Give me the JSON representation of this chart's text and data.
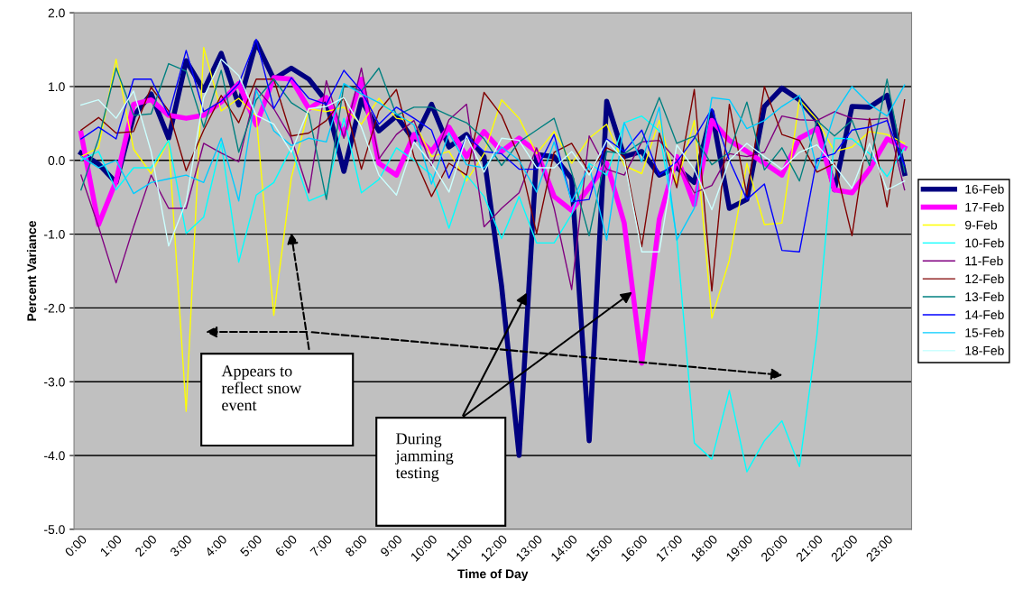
{
  "chart_data": {
    "type": "line",
    "xlabel": "Time of Day",
    "ylabel": "Percent Variance",
    "categories": [
      "0:00",
      null,
      "1:00",
      null,
      "2:00",
      null,
      "3:00",
      null,
      "4:00",
      null,
      "5:00",
      null,
      "6:00",
      null,
      "7:00",
      null,
      "8:00",
      null,
      "9:00",
      null,
      "10:00",
      null,
      "11:00",
      null,
      "12:00",
      null,
      "13:00",
      null,
      "14:00",
      null,
      "15:00",
      null,
      "16:00",
      null,
      "17:00",
      null,
      "18:00",
      null,
      "19:00",
      null,
      "20:00",
      null,
      "21:00",
      null,
      "22:00",
      null,
      "23:00",
      null
    ],
    "ylim": [
      -5,
      2
    ],
    "yticks": [
      {
        "value": -5,
        "label": "-5.0"
      },
      {
        "value": -4,
        "label": "-4.0"
      },
      {
        "value": -3,
        "label": "-3.0"
      },
      {
        "value": -2,
        "label": "-2.0"
      },
      {
        "value": -1,
        "label": "-1.0"
      },
      {
        "value": 0,
        "label": "0.0"
      },
      {
        "value": 1,
        "label": "1.0"
      },
      {
        "value": 2,
        "label": "2.0"
      }
    ],
    "grid": "y",
    "legend": "right",
    "marker": "none",
    "line_style": "solid",
    "series": [
      {
        "name": "16-Feb",
        "color": "#000080",
        "values": [
          0.1,
          -0.05,
          -0.3,
          0.6,
          0.9,
          0.3,
          1.35,
          0.95,
          1.45,
          0.75,
          1.6,
          1.1,
          1.25,
          1.1,
          0.8,
          -0.15,
          0.82,
          0.4,
          0.6,
          0.27,
          0.76,
          0.18,
          0.35,
          0.05,
          -1.7,
          -4.0,
          0.08,
          0.05,
          -0.25,
          -3.8,
          0.8,
          0.05,
          0.12,
          -0.2,
          -0.1,
          -0.3,
          0.66,
          -0.65,
          -0.53,
          0.73,
          0.98,
          0.82,
          0.54,
          -0.4,
          0.73,
          0.72,
          0.88,
          -0.18
        ]
      },
      {
        "name": "17-Feb",
        "color": "#ff00ff",
        "values": [
          0.37,
          -0.87,
          -0.28,
          0.76,
          0.82,
          0.61,
          0.57,
          0.61,
          0.79,
          1.04,
          0.48,
          1.12,
          1.1,
          0.7,
          0.85,
          0.35,
          1.1,
          -0.04,
          -0.2,
          0.35,
          0.12,
          0.45,
          0.05,
          0.39,
          0.12,
          0.3,
          0.12,
          -0.49,
          -0.68,
          -0.37,
          -0.04,
          -0.85,
          -2.75,
          -0.8,
          0.05,
          -0.6,
          0.54,
          0.27,
          0.12,
          -0.04,
          -0.2,
          0.3,
          0.43,
          -0.4,
          -0.44,
          -0.12,
          0.29,
          0.17
        ]
      },
      {
        "name": "9-Feb",
        "color": "#ffff00",
        "values": [
          0.05,
          0.17,
          1.37,
          0.15,
          -0.18,
          0.27,
          -3.4,
          1.53,
          0.67,
          0.84,
          0.6,
          -2.1,
          -0.24,
          0.7,
          0.66,
          0.72,
          0.49,
          0.84,
          0.57,
          0.53,
          0.05,
          0.12,
          -0.28,
          0.09,
          0.82,
          0.57,
          0.09,
          0.39,
          -0.04,
          0.3,
          0.49,
          -0.07,
          -0.18,
          0.54,
          -0.32,
          0.54,
          -2.14,
          -1.35,
          -0.04,
          -0.87,
          -0.85,
          0.82,
          0.55,
          0.12,
          0.18,
          0.39,
          0.35,
          0.23
        ]
      },
      {
        "name": "10-Feb",
        "color": "#00ffff",
        "values": [
          0.0,
          0.12,
          -0.4,
          -0.1,
          -0.1,
          0.27,
          -0.99,
          -0.77,
          0.23,
          -1.38,
          -0.47,
          -0.3,
          0.17,
          -0.55,
          -0.45,
          0.57,
          -0.44,
          -0.26,
          0.17,
          0.0,
          -0.2,
          -0.92,
          -0.2,
          -0.49,
          -1.06,
          -0.49,
          -1.12,
          -1.12,
          -0.73,
          -0.04,
          -0.2,
          0.51,
          0.6,
          0.4,
          -1.05,
          -3.83,
          -4.05,
          -3.12,
          -4.22,
          -3.8,
          -3.53,
          -4.15,
          -2.36,
          0.3,
          0.29,
          0.09,
          -0.22,
          0.17
        ]
      },
      {
        "name": "11-Feb",
        "color": "#800080",
        "values": [
          -0.2,
          -0.9,
          -1.66,
          -0.9,
          -0.2,
          -0.65,
          -0.65,
          0.23,
          0.1,
          -0.02,
          0.98,
          0.7,
          0.3,
          -0.44,
          1.08,
          0.3,
          1.25,
          0.02,
          0.35,
          0.54,
          -0.07,
          0.55,
          0.76,
          -0.9,
          -0.65,
          -0.44,
          0.17,
          -0.65,
          -1.75,
          0.33,
          -0.12,
          -0.2,
          0.25,
          0.27,
          0.0,
          -0.44,
          -0.34,
          0.09,
          0.05,
          0.11,
          0.6,
          0.55,
          0.54,
          0.66,
          0.57,
          0.55,
          0.57,
          -0.4
        ]
      },
      {
        "name": "12-Feb",
        "color": "#800000",
        "values": [
          0.41,
          0.58,
          0.37,
          0.39,
          0.99,
          0.67,
          -0.14,
          0.41,
          0.88,
          0.51,
          1.1,
          1.1,
          0.33,
          0.37,
          0.54,
          0.85,
          -0.12,
          0.67,
          0.96,
          0.05,
          -0.49,
          -0.04,
          -0.2,
          0.92,
          0.61,
          0.05,
          -0.99,
          0.11,
          0.23,
          -0.16,
          0.17,
          0.05,
          -1.17,
          0.37,
          -0.37,
          0.96,
          -1.77,
          0.76,
          -0.47,
          1.0,
          0.35,
          0.27,
          -0.16,
          -0.04,
          -1.02,
          0.57,
          -0.63,
          0.82
        ]
      },
      {
        "name": "13-Feb",
        "color": "#008080",
        "values": [
          -0.4,
          0.29,
          1.25,
          0.61,
          0.63,
          1.31,
          1.21,
          0.45,
          1.22,
          0.11,
          0.82,
          1.1,
          0.78,
          0.63,
          -0.53,
          1.02,
          0.94,
          1.25,
          0.61,
          0.72,
          0.72,
          0.61,
          0.51,
          0.29,
          -0.07,
          0.25,
          0.41,
          0.57,
          -0.16,
          -1.02,
          0.12,
          0.09,
          0.25,
          0.85,
          0.23,
          0.33,
          -0.06,
          0.11,
          0.79,
          -0.13,
          0.17,
          -0.28,
          0.54,
          0.33,
          0.54,
          -0.07,
          1.1,
          -0.16
        ]
      },
      {
        "name": "14-Feb",
        "color": "#0000ff",
        "values": [
          0.29,
          0.45,
          0.29,
          1.1,
          1.1,
          0.61,
          1.49,
          0.66,
          0.8,
          1.04,
          1.64,
          0.7,
          1.12,
          0.84,
          0.76,
          1.22,
          0.94,
          0.49,
          0.72,
          0.57,
          0.41,
          -0.24,
          0.33,
          0.12,
          0.09,
          -0.12,
          -0.12,
          0.35,
          -0.56,
          -0.53,
          0.29,
          0.12,
          0.41,
          -0.2,
          -0.02,
          0.3,
          0.7,
          0.0,
          -0.53,
          -0.32,
          -1.22,
          -1.24,
          0.02,
          0.09,
          0.41,
          0.45,
          0.54,
          -0.07
        ]
      },
      {
        "name": "15-Feb",
        "color": "#00ccff",
        "values": [
          0.05,
          -0.1,
          0.0,
          -0.45,
          -0.3,
          -0.25,
          -0.2,
          -0.3,
          0.3,
          -0.55,
          0.95,
          0.4,
          0.2,
          0.3,
          0.25,
          1.04,
          0.9,
          0.78,
          0.63,
          0.48,
          -0.32,
          0.37,
          -0.06,
          -0.1,
          0.18,
          0.0,
          -0.43,
          0.25,
          -0.56,
          -0.07,
          -1.08,
          0.51,
          -0.02,
          0.72,
          -1.08,
          -0.65,
          0.85,
          0.82,
          0.43,
          0.54,
          0.73,
          0.88,
          -0.12,
          0.63,
          1.0,
          0.76,
          0.6,
          1.02
        ]
      },
      {
        "name": "18-Feb",
        "color": "#ccffff",
        "values": [
          0.75,
          0.82,
          0.57,
          0.94,
          0.12,
          -1.16,
          -0.56,
          0.85,
          1.37,
          1.15,
          0.61,
          0.49,
          0.11,
          0.7,
          0.73,
          0.85,
          0.45,
          -0.2,
          -0.47,
          0.25,
          -0.04,
          -0.43,
          0.33,
          -0.16,
          0.3,
          0.27,
          -0.1,
          -0.1,
          0.12,
          -0.2,
          0.27,
          0.0,
          -1.24,
          -1.24,
          0.21,
          -0.12,
          -0.67,
          0.0,
          0.23,
          0.05,
          -0.12,
          0.11,
          0.21,
          -0.07,
          -0.38,
          0.23,
          -0.4,
          -0.28
        ]
      }
    ],
    "annotations": [
      "Appears to\nreflect snow\nevent",
      "During\njamming\ntesting"
    ]
  }
}
